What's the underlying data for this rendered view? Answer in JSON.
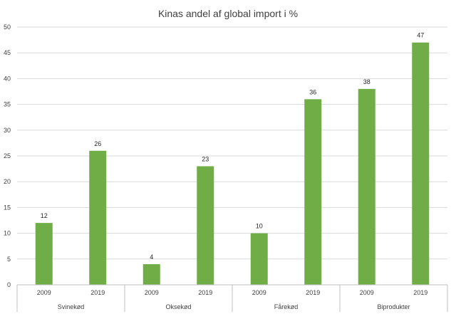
{
  "chart_data": {
    "type": "bar",
    "title": "Kinas andel af global import i %",
    "groups": [
      "Svinekød",
      "Oksekød",
      "Fårekød",
      "Biprodukter"
    ],
    "years": [
      "2009",
      "2019"
    ],
    "values": [
      [
        12,
        26
      ],
      [
        4,
        23
      ],
      [
        10,
        36
      ],
      [
        38,
        47
      ]
    ],
    "ylim": [
      0,
      50
    ],
    "yticks": [
      0,
      5,
      10,
      15,
      20,
      25,
      30,
      35,
      40,
      45,
      50
    ],
    "grid": true,
    "legend": "none",
    "bar_color": "#70ad47",
    "grid_color": "#d9d9d9",
    "axis_color": "#bfbfbf"
  }
}
